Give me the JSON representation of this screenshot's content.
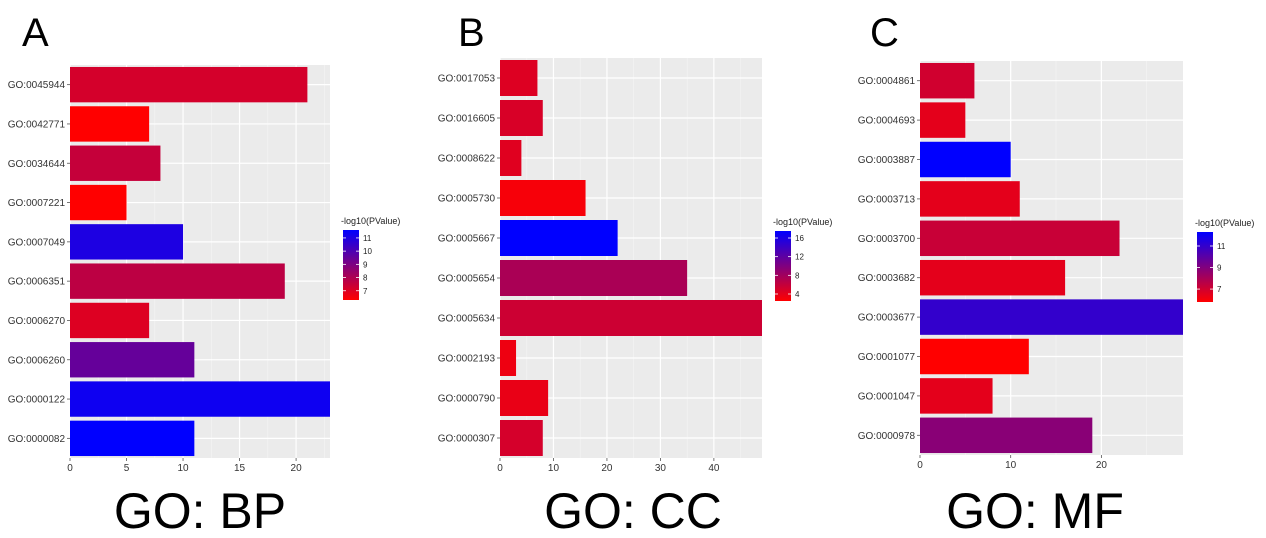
{
  "figure": {
    "panels": [
      {
        "letter": "A",
        "caption": "GO: BP"
      },
      {
        "letter": "B",
        "caption": "GO: CC"
      },
      {
        "letter": "C",
        "caption": "GO: MF"
      }
    ]
  },
  "chart_data": [
    {
      "type": "bar",
      "orientation": "horizontal",
      "title": "",
      "xlabel": "",
      "ylabel": "",
      "color_scale": {
        "title": "-log10(PValue)",
        "low_color": "#ff0000",
        "high_color": "#0000ff",
        "min": 6.3,
        "max": 11.6,
        "ticks": [
          7,
          8,
          9,
          10,
          11
        ]
      },
      "xlim": [
        0,
        23
      ],
      "xticks": [
        0,
        5,
        10,
        15,
        20
      ],
      "grid": true,
      "categories": [
        "GO:0045944",
        "GO:0042771",
        "GO:0034644",
        "GO:0007221",
        "GO:0007049",
        "GO:0006351",
        "GO:0006270",
        "GO:0006260",
        "GO:0000122",
        "GO:0000082"
      ],
      "values": [
        21,
        7,
        8,
        5,
        10,
        19,
        7,
        11,
        23,
        11
      ],
      "neg_log10_pvalue": [
        7.2,
        6.3,
        7.5,
        6.3,
        11.0,
        7.7,
        7.0,
        9.5,
        11.3,
        11.6
      ]
    },
    {
      "type": "bar",
      "orientation": "horizontal",
      "title": "",
      "xlabel": "",
      "ylabel": "",
      "color_scale": {
        "title": "-log10(PValue)",
        "low_color": "#ff0000",
        "high_color": "#0000ff",
        "min": 2.5,
        "max": 17.5,
        "ticks": [
          4,
          8,
          12,
          16
        ]
      },
      "xlim": [
        0,
        49
      ],
      "xticks": [
        0,
        10,
        20,
        30,
        40
      ],
      "grid": true,
      "categories": [
        "GO:0017053",
        "GO:0016605",
        "GO:0008622",
        "GO:0005730",
        "GO:0005667",
        "GO:0005654",
        "GO:0005634",
        "GO:0002193",
        "GO:0000790",
        "GO:0000307"
      ],
      "values": [
        7,
        8,
        4,
        16,
        22,
        35,
        49,
        3,
        9,
        8
      ],
      "neg_log10_pvalue": [
        4.5,
        4.8,
        4.3,
        3.0,
        17.5,
        7.5,
        5.5,
        3.5,
        3.8,
        5.0
      ]
    },
    {
      "type": "bar",
      "orientation": "horizontal",
      "title": "",
      "xlabel": "",
      "ylabel": "",
      "color_scale": {
        "title": "-log10(PValue)",
        "low_color": "#ff0000",
        "high_color": "#0000ff",
        "min": 5.8,
        "max": 12.3,
        "ticks": [
          7,
          9,
          11
        ]
      },
      "xlim": [
        0,
        29
      ],
      "xticks": [
        0,
        10,
        20
      ],
      "grid": true,
      "categories": [
        "GO:0004861",
        "GO:0004693",
        "GO:0003887",
        "GO:0003713",
        "GO:0003700",
        "GO:0003682",
        "GO:0003677",
        "GO:0001077",
        "GO:0001047",
        "GO:0000978"
      ],
      "values": [
        6,
        5,
        10,
        11,
        22,
        16,
        29,
        12,
        8,
        19
      ],
      "neg_log10_pvalue": [
        7.0,
        6.5,
        12.3,
        6.5,
        7.2,
        6.5,
        11.0,
        5.8,
        6.5,
        8.8
      ]
    }
  ]
}
